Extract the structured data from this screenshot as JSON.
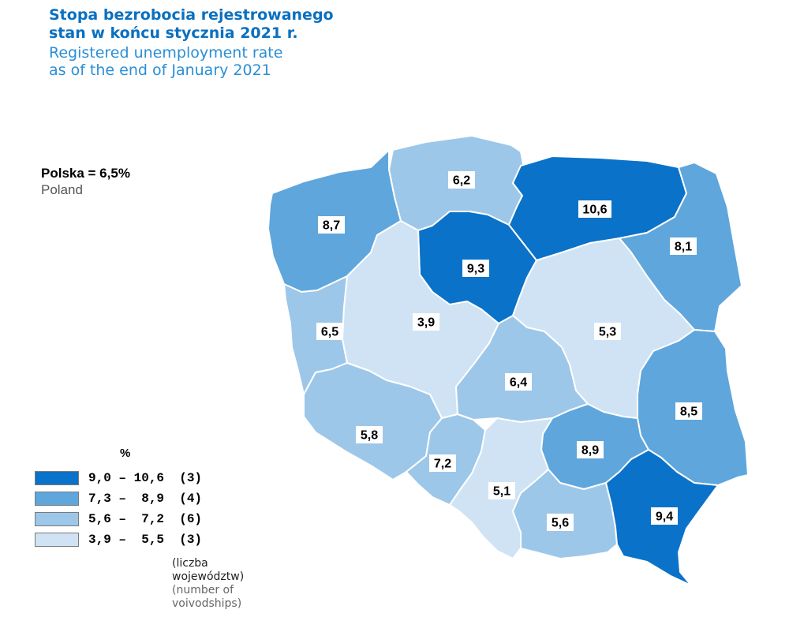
{
  "title": {
    "pl": "Stopa bezrobocia rejestrowanego\nstan w końcu stycznia 2021 r.",
    "pl_line1": "Stopa bezrobocia rejestrowanego",
    "pl_line2": "stan w końcu stycznia 2021 r.",
    "en_line1": "Registered unemployment rate",
    "en_line2": "as of the end of January 2021"
  },
  "national": {
    "pl": "Polska = 6,5%",
    "en": "Poland"
  },
  "colors": {
    "class1": "#0a72c8",
    "class2": "#5fa6dc",
    "class3": "#9dc7e9",
    "class4": "#cfe3f4"
  },
  "regions": [
    {
      "id": "pomorskie",
      "value": "6,2",
      "class": 3
    },
    {
      "id": "zachodniopomorskie",
      "value": "8,7",
      "class": 2
    },
    {
      "id": "warminsko-mazurskie",
      "value": "10,6",
      "class": 1
    },
    {
      "id": "podlaskie",
      "value": "8,1",
      "class": 2
    },
    {
      "id": "kujawsko-pomorskie",
      "value": "9,3",
      "class": 1
    },
    {
      "id": "lubuskie",
      "value": "6,5",
      "class": 3
    },
    {
      "id": "wielkopolskie",
      "value": "3,9",
      "class": 4
    },
    {
      "id": "mazowieckie",
      "value": "5,3",
      "class": 4
    },
    {
      "id": "lodzkie",
      "value": "6,4",
      "class": 3
    },
    {
      "id": "lubelskie",
      "value": "8,5",
      "class": 2
    },
    {
      "id": "dolnoslaskie",
      "value": "5,8",
      "class": 3
    },
    {
      "id": "opolskie",
      "value": "7,2",
      "class": 3
    },
    {
      "id": "swietokrzyskie",
      "value": "8,9",
      "class": 2
    },
    {
      "id": "slaskie",
      "value": "5,1",
      "class": 4
    },
    {
      "id": "malopolskie",
      "value": "5,6",
      "class": 3
    },
    {
      "id": "podkarpackie",
      "value": "9,4",
      "class": 1
    }
  ],
  "legend": {
    "unit": "%",
    "items": [
      {
        "label": "9,0 – 10,6  (3)",
        "class": 1
      },
      {
        "label": "7,3 –  8,9  (4)",
        "class": 2
      },
      {
        "label": "5,6 –  7,2  (6)",
        "class": 3
      },
      {
        "label": "3,9 –  5,5  (3)",
        "class": 4
      }
    ],
    "note_pl": "(liczba województw)",
    "note_en": "(number of voivodships)"
  }
}
